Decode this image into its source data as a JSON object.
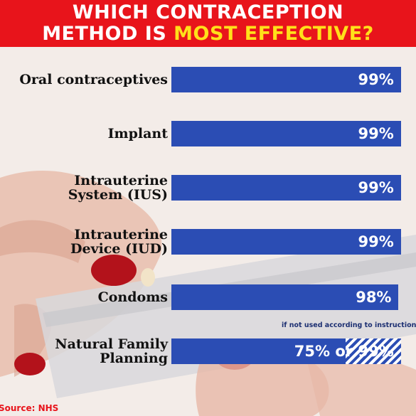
{
  "header": {
    "line1": "WHICH CONTRACEPTION",
    "line2_prefix": "METHOD IS ",
    "line2_highlight": "MOST EFFECTIVE?"
  },
  "colors": {
    "header_bg": "#e8141b",
    "highlight": "#ffe01a",
    "bar": "#2b4db4",
    "source": "#e8141b"
  },
  "chart_data": {
    "type": "bar",
    "orientation": "horizontal",
    "title": "WHICH CONTRACEPTION METHOD IS MOST EFFECTIVE?",
    "categories": [
      [
        "Oral contraceptives"
      ],
      [
        "Implant"
      ],
      [
        "Intrauterine",
        "System (IUS)"
      ],
      [
        "Intrauterine",
        "Device (IUD)"
      ],
      [
        "Condoms"
      ],
      [
        "Natural Family",
        "Planning"
      ]
    ],
    "values": [
      99,
      99,
      99,
      99,
      98,
      75
    ],
    "alt_value": [
      null,
      null,
      null,
      null,
      null,
      99
    ],
    "value_labels": [
      "99%",
      "99%",
      "99%",
      "99%",
      "98%",
      "75% or 99%"
    ],
    "annotation": "if not used according to instructions",
    "xlim": [
      0,
      100
    ],
    "grid": false
  },
  "source": "Source: NHS"
}
